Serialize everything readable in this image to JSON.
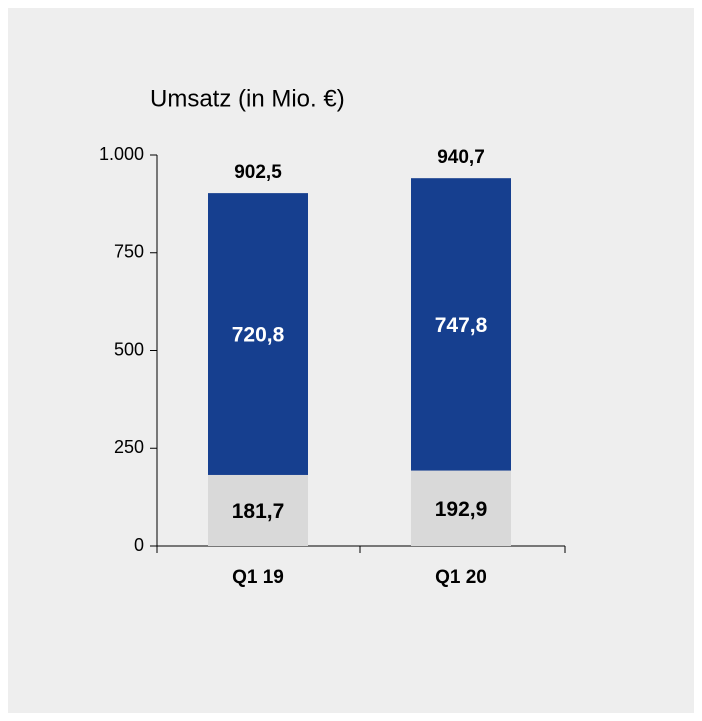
{
  "chart_data": {
    "type": "stacked_bar",
    "title": "Umsatz (in Mio. €)",
    "categories": [
      "Q1 19",
      "Q1 20"
    ],
    "series": [
      {
        "color": "#d9d9d9",
        "values": [
          181.7,
          192.9
        ],
        "value_labels": [
          "181,7",
          "192,9"
        ]
      },
      {
        "color": "#163f8f",
        "values": [
          720.8,
          747.8
        ],
        "value_labels": [
          "720,8",
          "747,8"
        ]
      }
    ],
    "totals": [
      902.5,
      940.7
    ],
    "total_labels": [
      "902,5",
      "940,7"
    ],
    "ylim": [
      0,
      1000
    ],
    "yticks": [
      0,
      250,
      500,
      750,
      {
        "value": 1000,
        "label": "1.000"
      }
    ]
  }
}
